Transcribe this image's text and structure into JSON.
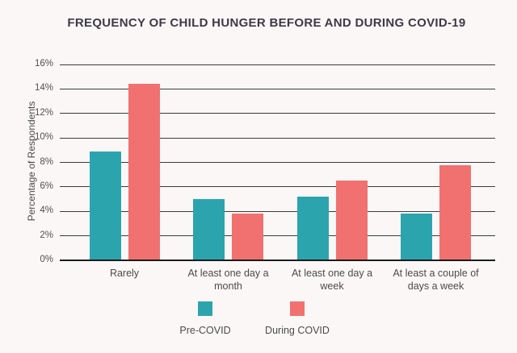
{
  "chart_data": {
    "type": "bar",
    "title": "FREQUENCY OF CHILD HUNGER BEFORE AND DURING COVID-19",
    "ylabel": "Percentage of Respondents",
    "xlabel": "",
    "ylim": [
      0,
      16
    ],
    "ytick_step": 2,
    "ytick_labels": [
      "0%",
      "2%",
      "4%",
      "6%",
      "8%",
      "10%",
      "12%",
      "14%",
      "16%"
    ],
    "categories": [
      "Rarely",
      "At least one day a\nmonth",
      "At least one day a\nweek",
      "At least a couple of\ndays a week"
    ],
    "series": [
      {
        "name": "Pre-COVID",
        "color": "#2BA4AE",
        "values": [
          8.9,
          5.0,
          5.2,
          3.8
        ]
      },
      {
        "name": "During COVID",
        "color": "#F0716F",
        "values": [
          14.4,
          3.8,
          6.5,
          7.8
        ]
      }
    ],
    "grid": "horizontal",
    "legend_position": "bottom"
  },
  "colors": {
    "background": "#FCF7F7",
    "gridline": "#3B3B3B",
    "axis": "#1B1B1B",
    "title_text": "#3E3A45",
    "label_text": "#4A4A4A"
  }
}
